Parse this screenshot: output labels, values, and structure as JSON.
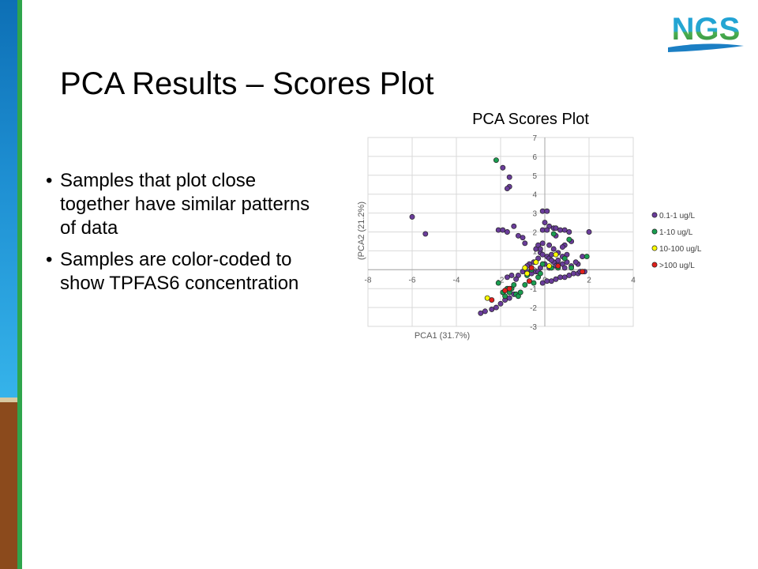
{
  "slide": {
    "title": "PCA Results – Scores Plot",
    "bullets": [
      "Samples that plot close together have similar patterns of data",
      "Samples are color-coded to show TPFAS6 concentration"
    ]
  },
  "logo": {
    "text": "NGS"
  },
  "colors": {
    "sidebar_blue": "#1e8fd2",
    "sidebar_brown": "#8b4a1c",
    "sidebar_green": "#2fa54c",
    "series_0": "#6a3d9a",
    "series_1": "#1a9e50",
    "series_2": "#ffff00",
    "series_3": "#e0201c"
  },
  "chart_data": {
    "type": "scatter",
    "title": "PCA Scores Plot",
    "xlabel": "PCA1 (31.7%)",
    "ylabel": "(PCA2 (21.2%)",
    "xlim": [
      -8,
      4
    ],
    "ylim": [
      -3,
      7
    ],
    "xticks": [
      "-8",
      "-6",
      "-4",
      "-2",
      "0",
      "2",
      "4"
    ],
    "yticks": [
      "-3",
      "-2",
      "-1",
      "0",
      "1",
      "2",
      "3",
      "4",
      "5",
      "6",
      "7"
    ],
    "grid": true,
    "legend_position": "right",
    "series": [
      {
        "name": "0.1-1 ug/L",
        "color": "#6a3d9a",
        "points": [
          [
            -6,
            2.8
          ],
          [
            -5.4,
            1.9
          ],
          [
            -1.9,
            5.4
          ],
          [
            -1.6,
            4.9
          ],
          [
            -1.6,
            4.4
          ],
          [
            -1.7,
            4.3
          ],
          [
            -2.1,
            2.1
          ],
          [
            -1.9,
            2.1
          ],
          [
            -1.7,
            2
          ],
          [
            -1.4,
            2.3
          ],
          [
            -1.2,
            1.8
          ],
          [
            -1,
            1.7
          ],
          [
            -0.9,
            1.4
          ],
          [
            -0.1,
            3.1
          ],
          [
            0.1,
            3.1
          ],
          [
            0,
            2.5
          ],
          [
            0.2,
            2.3
          ],
          [
            0.4,
            2.2
          ],
          [
            0.5,
            2.2
          ],
          [
            0.7,
            2.1
          ],
          [
            0.9,
            2.1
          ],
          [
            -0.1,
            2.1
          ],
          [
            0.1,
            2.1
          ],
          [
            2,
            2
          ],
          [
            1.1,
            2
          ],
          [
            0.5,
            1.8
          ],
          [
            0.9,
            1.3
          ],
          [
            1.2,
            1.5
          ],
          [
            1.7,
            0.7
          ],
          [
            1.5,
            0.3
          ],
          [
            1,
            0.8
          ],
          [
            0.8,
            0.3
          ],
          [
            -0.4,
            1.1
          ],
          [
            -0.2,
            0.9
          ],
          [
            -0.1,
            0.8
          ],
          [
            0.1,
            0.7
          ],
          [
            0.2,
            0.6
          ],
          [
            0.4,
            0.4
          ],
          [
            0.6,
            0.9
          ],
          [
            0.8,
            0.7
          ],
          [
            0.6,
            0.3
          ],
          [
            0.3,
            0.5
          ],
          [
            -0.3,
            0.6
          ],
          [
            -0.5,
            0.4
          ],
          [
            -0.7,
            0.3
          ],
          [
            -0.8,
            0.2
          ],
          [
            -1,
            -0.1
          ],
          [
            -1.2,
            -0.3
          ],
          [
            -1.3,
            -0.5
          ],
          [
            -1.5,
            -0.3
          ],
          [
            -1.7,
            -0.4
          ],
          [
            0,
            0.3
          ],
          [
            0.2,
            0.1
          ],
          [
            0.5,
            0.2
          ],
          [
            0.9,
            0.1
          ],
          [
            1.2,
            0.2
          ],
          [
            1.4,
            0.4
          ],
          [
            -0.2,
            0.1
          ],
          [
            -0.4,
            -0.1
          ],
          [
            -0.6,
            -0.2
          ],
          [
            0.3,
            0.8
          ],
          [
            -0.3,
            1.3
          ],
          [
            0.8,
            1.2
          ],
          [
            -2.9,
            -2.3
          ],
          [
            -2.7,
            -2.2
          ],
          [
            -2.4,
            -2.1
          ],
          [
            -2.2,
            -2
          ],
          [
            -2,
            -1.8
          ],
          [
            -1.8,
            -1.6
          ],
          [
            -1.6,
            -1.5
          ],
          [
            -1.4,
            -1.3
          ],
          [
            -0.1,
            -0.7
          ],
          [
            0.1,
            -0.6
          ],
          [
            0.3,
            -0.6
          ],
          [
            0.5,
            -0.5
          ],
          [
            0.7,
            -0.4
          ],
          [
            0.9,
            -0.4
          ],
          [
            1.1,
            -0.3
          ],
          [
            1.3,
            -0.2
          ],
          [
            1.5,
            -0.2
          ],
          [
            1.6,
            -0.1
          ],
          [
            1.8,
            -0.1
          ],
          [
            -0.8,
            -0.1
          ],
          [
            -0.6,
            0.1
          ],
          [
            -0.3,
            -0.1
          ],
          [
            0.6,
            0.5
          ],
          [
            1,
            0.4
          ],
          [
            0.2,
            1.3
          ],
          [
            -0.1,
            1.4
          ],
          [
            -0.2,
            1.1
          ],
          [
            0.4,
            1.1
          ]
        ]
      },
      {
        "name": "1-10 ug/L",
        "color": "#1a9e50",
        "points": [
          [
            -2.2,
            5.8
          ],
          [
            -2.1,
            -0.7
          ],
          [
            -1.8,
            -1.4
          ],
          [
            -1.6,
            -1.2
          ],
          [
            -1.5,
            -1
          ],
          [
            -1.3,
            -1.3
          ],
          [
            -1.2,
            -1.4
          ],
          [
            -1.1,
            -1.2
          ],
          [
            -1.9,
            -1.2
          ],
          [
            -1.7,
            -1
          ],
          [
            -1.4,
            -0.8
          ],
          [
            -0.9,
            -0.8
          ],
          [
            -0.7,
            -0.6
          ],
          [
            -0.5,
            -0.7
          ],
          [
            -0.3,
            -0.4
          ],
          [
            -0.2,
            -0.2
          ],
          [
            0.4,
            1.9
          ],
          [
            1.1,
            1.6
          ],
          [
            1.9,
            0.7
          ],
          [
            0.9,
            0.6
          ],
          [
            0.3,
            0.1
          ],
          [
            -0.1,
            0.3
          ],
          [
            0.6,
            0.1
          ],
          [
            1.2,
            0.1
          ],
          [
            -0.6,
            0
          ],
          [
            -0.8,
            -0.3
          ]
        ]
      },
      {
        "name": "10-100 ug/L",
        "color": "#ffff00",
        "points": [
          [
            -2.6,
            -1.5
          ],
          [
            -0.4,
            0.4
          ],
          [
            0.5,
            0.8
          ],
          [
            -0.8,
            -0.2
          ],
          [
            0.2,
            0.2
          ],
          [
            -0.9,
            0.1
          ]
        ]
      },
      {
        "name": ">100 ug/L",
        "color": "#e0201c",
        "points": [
          [
            -2.4,
            -1.6
          ],
          [
            -1.8,
            -1.1
          ],
          [
            -0.7,
            -0.6
          ],
          [
            -0.6,
            0.1
          ],
          [
            0.6,
            0.2
          ],
          [
            1.7,
            -0.1
          ],
          [
            -1.6,
            -1
          ]
        ]
      }
    ]
  }
}
